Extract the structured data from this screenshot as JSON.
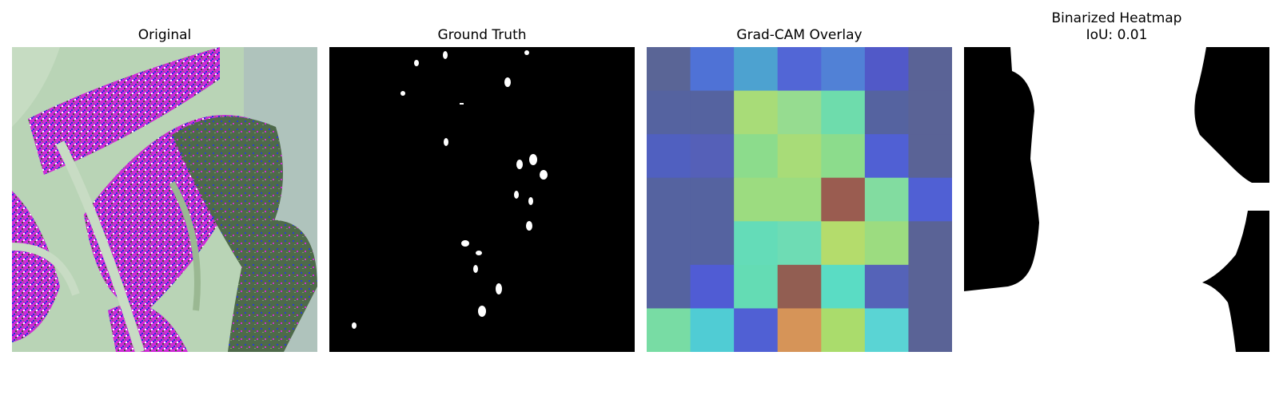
{
  "panels": [
    {
      "title": "Original"
    },
    {
      "title": "Ground Truth"
    },
    {
      "title": "Grad-CAM Overlay"
    },
    {
      "title": "Binarized Heatmap",
      "subtitle": "IoU: 0.01"
    }
  ],
  "gradcam_grid": [
    [
      "#5a6596",
      "#4f72d6",
      "#4da2d0",
      "#5266d6",
      "#5181d6",
      "#5159c8",
      "#5a6396"
    ],
    [
      "#5563a0",
      "#5563a0",
      "#a8dc78",
      "#96dc90",
      "#6edcac",
      "#5563a0",
      "#5a6396"
    ],
    [
      "#5060c0",
      "#5560b8",
      "#8cdc8c",
      "#a8dc78",
      "#8cdc8c",
      "#5060d4",
      "#5a6396"
    ],
    [
      "#5563a0",
      "#5563a0",
      "#9cdc80",
      "#9cdc80",
      "#9a5c50",
      "#82dca0",
      "#5060d4"
    ],
    [
      "#5563a0",
      "#5563a0",
      "#64dcb8",
      "#6edcb4",
      "#b4dc6c",
      "#9cdc80",
      "#5a6396"
    ],
    [
      "#5563a0",
      "#505cd4",
      "#64dcb4",
      "#925e52",
      "#5adcc4",
      "#5563b8",
      "#5a6396"
    ],
    [
      "#78dca4",
      "#50ccd4",
      "#5060d4",
      "#d69458",
      "#aadc6c",
      "#5ad4d4",
      "#5a6396"
    ]
  ]
}
